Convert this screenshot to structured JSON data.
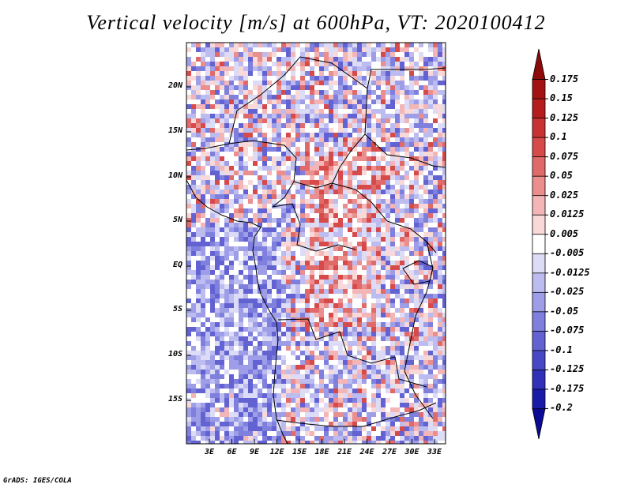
{
  "title": "Vertical velocity [m/s] at 600hPa, VT: 2020100412",
  "credit": "GrADS: IGES/COLA",
  "lat_labels": [
    "20N",
    "15N",
    "10N",
    "5N",
    "EQ",
    "5S",
    "10S",
    "15S"
  ],
  "lon_labels": [
    "3E",
    "6E",
    "9E",
    "12E",
    "15E",
    "18E",
    "21E",
    "24E",
    "27E",
    "30E",
    "33E"
  ],
  "colorbar": {
    "levels": [
      "0.175",
      "0.15",
      "0.125",
      "0.1",
      "0.075",
      "0.05",
      "0.025",
      "0.0125",
      "0.005",
      "-0.005",
      "-0.0125",
      "-0.025",
      "-0.05",
      "-0.075",
      "-0.1",
      "-0.125",
      "-0.175",
      "-0.2"
    ],
    "colors": [
      "#8e0a0a",
      "#a31212",
      "#b51c1c",
      "#c93232",
      "#d64a4a",
      "#e06a6a",
      "#ea8e8e",
      "#f3b5b5",
      "#f9d8d8",
      "#ffffff",
      "#dcdcf7",
      "#bcbcf0",
      "#9d9de8",
      "#7f7fdd",
      "#6262d2",
      "#4848c6",
      "#3030b8",
      "#1a1aa8",
      "#0a0a94"
    ]
  }
}
